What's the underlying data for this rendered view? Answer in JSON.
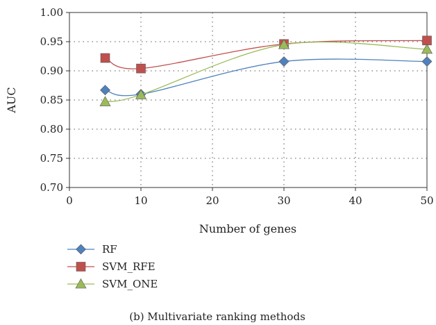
{
  "chart_data": {
    "type": "line",
    "xlabel": "Number of genes",
    "ylabel": "AUC",
    "xlim": [
      0,
      50
    ],
    "ylim": [
      0.7,
      1.0
    ],
    "xticks": [
      "0",
      "10",
      "20",
      "30",
      "40",
      "50"
    ],
    "yticks": [
      "0.70",
      "0.75",
      "0.80",
      "0.85",
      "0.90",
      "0.95",
      "1.00"
    ],
    "grid": true,
    "legend_position": "bottom-left",
    "caption": "(b)  Multivariate ranking methods",
    "series": [
      {
        "name": "RF",
        "marker": "diamond",
        "color": "#4f81bd",
        "x": [
          5,
          10,
          30,
          50
        ],
        "y": [
          0.867,
          0.86,
          0.916,
          0.916
        ]
      },
      {
        "name": "SVM_RFE",
        "marker": "square",
        "color": "#c0504d",
        "x": [
          5,
          10,
          30,
          50
        ],
        "y": [
          0.922,
          0.904,
          0.946,
          0.952
        ]
      },
      {
        "name": "SVM_ONE",
        "marker": "triangle",
        "color": "#9bbb59",
        "x": [
          5,
          10,
          30,
          50
        ],
        "y": [
          0.847,
          0.859,
          0.945,
          0.937
        ]
      }
    ]
  }
}
